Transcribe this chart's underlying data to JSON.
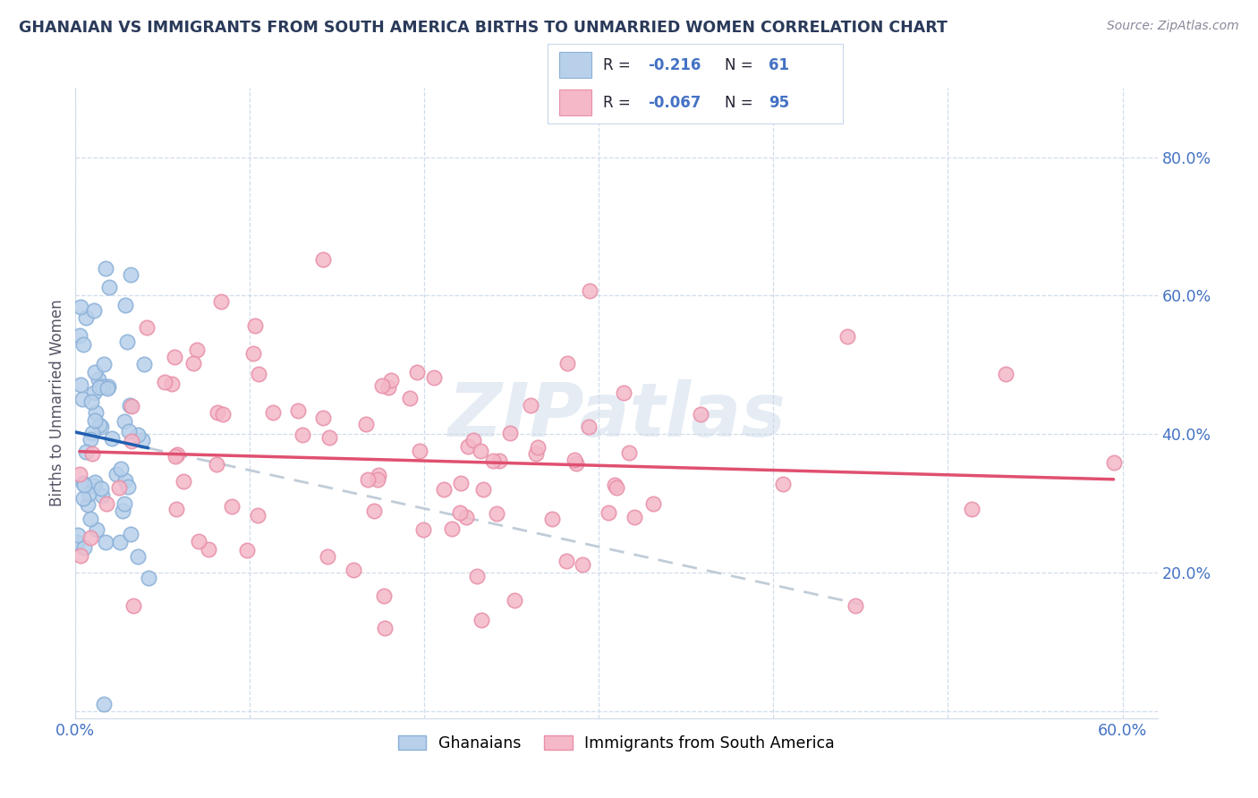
{
  "title": "GHANAIAN VS IMMIGRANTS FROM SOUTH AMERICA BIRTHS TO UNMARRIED WOMEN CORRELATION CHART",
  "source": "Source: ZipAtlas.com",
  "ylabel": "Births to Unmarried Women",
  "xlim": [
    0.0,
    0.62
  ],
  "ylim": [
    -0.01,
    0.9
  ],
  "yticks": [
    0.0,
    0.2,
    0.4,
    0.6,
    0.8
  ],
  "ytick_labels": [
    "",
    "20.0%",
    "40.0%",
    "60.0%",
    "80.0%"
  ],
  "xtick_positions": [
    0.0,
    0.1,
    0.2,
    0.3,
    0.4,
    0.5,
    0.6
  ],
  "xtick_labels": [
    "0.0%",
    "",
    "",
    "",
    "",
    "",
    "60.0%"
  ],
  "ghanaian_color_fill": "#b8d0ea",
  "ghanaian_color_edge": "#8ab0d8",
  "sa_color_fill": "#f4b8c8",
  "sa_color_edge": "#e890a8",
  "trend_ghanaian_color": "#2060b0",
  "trend_sa_color": "#e05070",
  "trend_dashed_color": "#c0ccd8",
  "R_ghanaian": -0.216,
  "N_ghanaian": 61,
  "R_sa": -0.067,
  "N_sa": 95,
  "watermark": "ZIPatlas",
  "background_color": "#ffffff",
  "grid_color": "#d0dcea",
  "text_color": "#2a3a5a",
  "axis_label_color": "#4472c4",
  "legend_border_color": "#c8d8ec",
  "marker_size": 140,
  "marker_linewidth": 1.2
}
